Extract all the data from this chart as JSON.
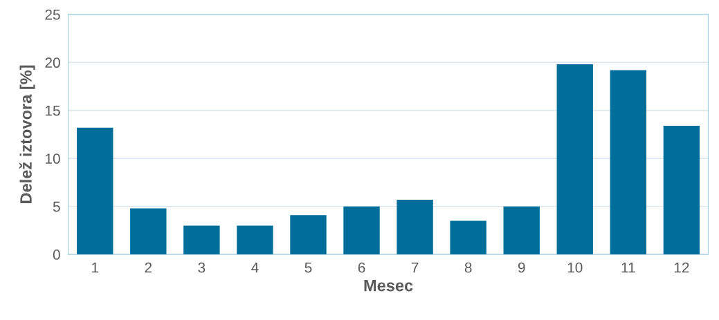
{
  "chart_data": {
    "type": "bar",
    "xlabel": "Mesec",
    "ylabel": "Delež iztovora [%]",
    "categories": [
      "1",
      "2",
      "3",
      "4",
      "5",
      "6",
      "7",
      "8",
      "9",
      "10",
      "11",
      "12"
    ],
    "values": [
      13.2,
      4.8,
      3.0,
      3.0,
      4.1,
      5.0,
      5.7,
      3.5,
      5.0,
      19.8,
      19.2,
      13.4
    ],
    "color": "#006e9a",
    "ylim": [
      0,
      25
    ],
    "yticks": [
      0,
      5,
      10,
      15,
      20,
      25
    ],
    "grid": "y"
  }
}
